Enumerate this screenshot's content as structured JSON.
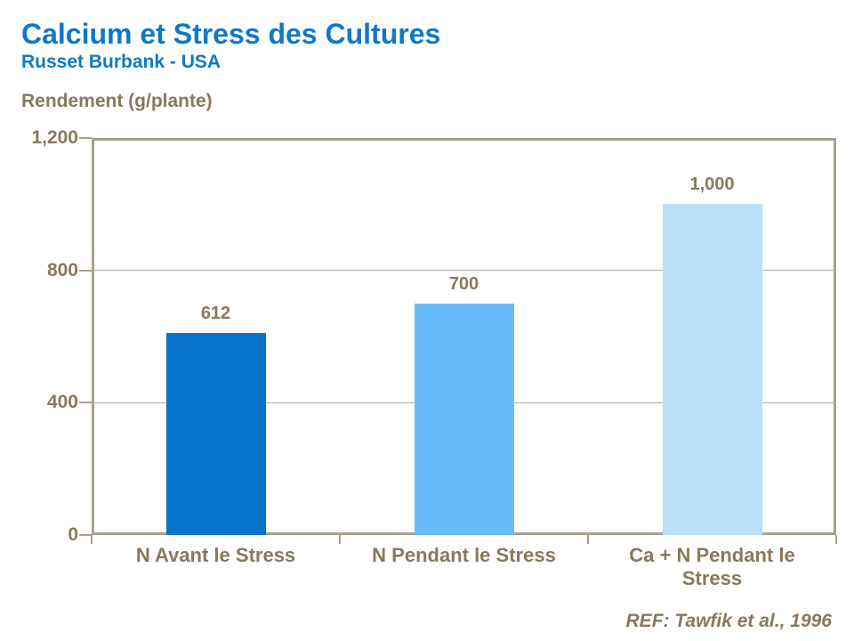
{
  "header": {
    "title": "Calcium et Stress des Cultures",
    "subtitle": "Russet Burbank - USA"
  },
  "axis_title": "Rendement (g/plante)",
  "reference": "REF: Tawfik et al., 1996",
  "colors": {
    "title_blue": "#0F79C6",
    "text_brown": "#87795F",
    "plot_border": "#A9A092",
    "gridline": "#B3AB9D",
    "bars": [
      "#0473C9",
      "#66BCF9",
      "#B9DFFB"
    ]
  },
  "chart_data": {
    "type": "bar",
    "title": "Calcium et Stress des Cultures",
    "subtitle": "Russet Burbank - USA",
    "ylabel": "Rendement (g/plante)",
    "xlabel": "",
    "categories": [
      "N Avant le Stress",
      "N Pendant le Stress",
      "Ca + N Pendant le Stress"
    ],
    "values": [
      612,
      700,
      1000
    ],
    "value_labels": [
      "612",
      "700",
      "1,000"
    ],
    "bar_colors": [
      "#0473C9",
      "#66BCF9",
      "#B9DFFB"
    ],
    "ylim": [
      0,
      1200
    ],
    "yticks": [
      0,
      400,
      800,
      1200
    ],
    "ytick_labels": [
      "0",
      "400",
      "800",
      "1,200"
    ],
    "grid": "horizontal gridlines at interior yticks",
    "legend_position": "none",
    "annotation": "REF: Tawfik et al., 1996"
  }
}
